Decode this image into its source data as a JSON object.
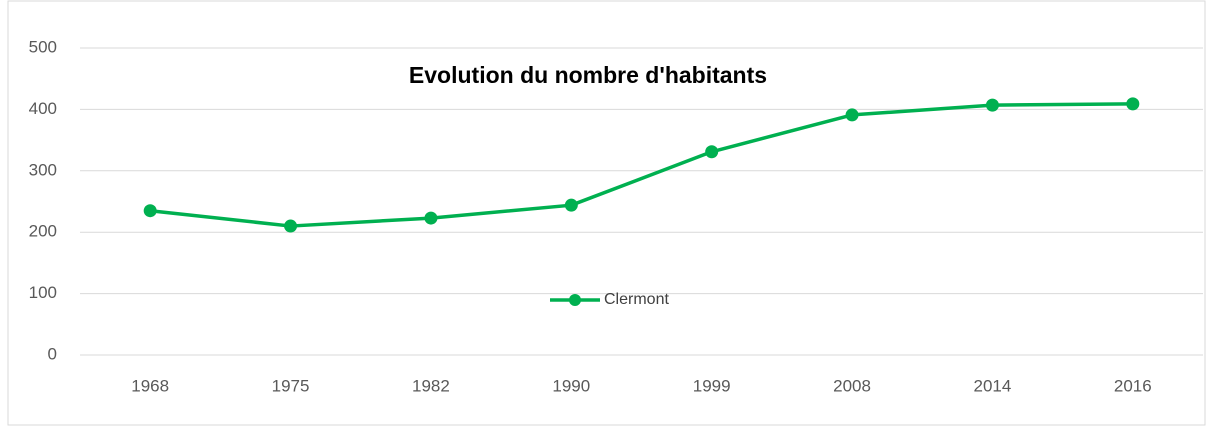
{
  "chart_data": {
    "type": "line",
    "title": "Evolution du nombre d'habitants",
    "categories": [
      "1968",
      "1975",
      "1982",
      "1990",
      "1999",
      "2008",
      "2014",
      "2016"
    ],
    "series": [
      {
        "name": "Clermont",
        "color": "#00b050",
        "values": [
          235,
          210,
          223,
          244,
          331,
          391,
          407,
          409
        ]
      }
    ],
    "ylim": [
      0,
      500
    ],
    "yticks": [
      0,
      100,
      200,
      300,
      400,
      500
    ],
    "grid": true,
    "legend": "center"
  }
}
